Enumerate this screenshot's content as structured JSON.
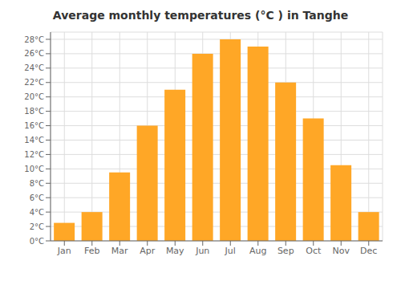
{
  "chart_data": {
    "type": "bar",
    "title": "Average monthly temperatures (°C ) in Tanghe",
    "categories": [
      "Jan",
      "Feb",
      "Mar",
      "Apr",
      "May",
      "Jun",
      "Jul",
      "Aug",
      "Sep",
      "Oct",
      "Nov",
      "Dec"
    ],
    "values": [
      2.5,
      4.0,
      9.5,
      16.0,
      21.0,
      26.0,
      28.0,
      27.0,
      22.0,
      17.0,
      10.5,
      4.0
    ],
    "color": "#FFA726",
    "ylim": [
      0,
      29
    ],
    "yticks": [
      {
        "value": 0,
        "label": "0°C"
      },
      {
        "value": 2,
        "label": "2°C"
      },
      {
        "value": 4,
        "label": "4°C"
      },
      {
        "value": 6,
        "label": "6°C"
      },
      {
        "value": 8,
        "label": "8°C"
      },
      {
        "value": 10,
        "label": "10°C"
      },
      {
        "value": 12,
        "label": "12°C"
      },
      {
        "value": 14,
        "label": "14°C"
      },
      {
        "value": 16,
        "label": "16°C"
      },
      {
        "value": 18,
        "label": "18°C"
      },
      {
        "value": 20,
        "label": "20°C"
      },
      {
        "value": 22,
        "label": "22°C"
      },
      {
        "value": 24,
        "label": "24°C"
      },
      {
        "value": 26,
        "label": "26°C"
      },
      {
        "value": 28,
        "label": "28°C"
      }
    ],
    "grid": true
  }
}
